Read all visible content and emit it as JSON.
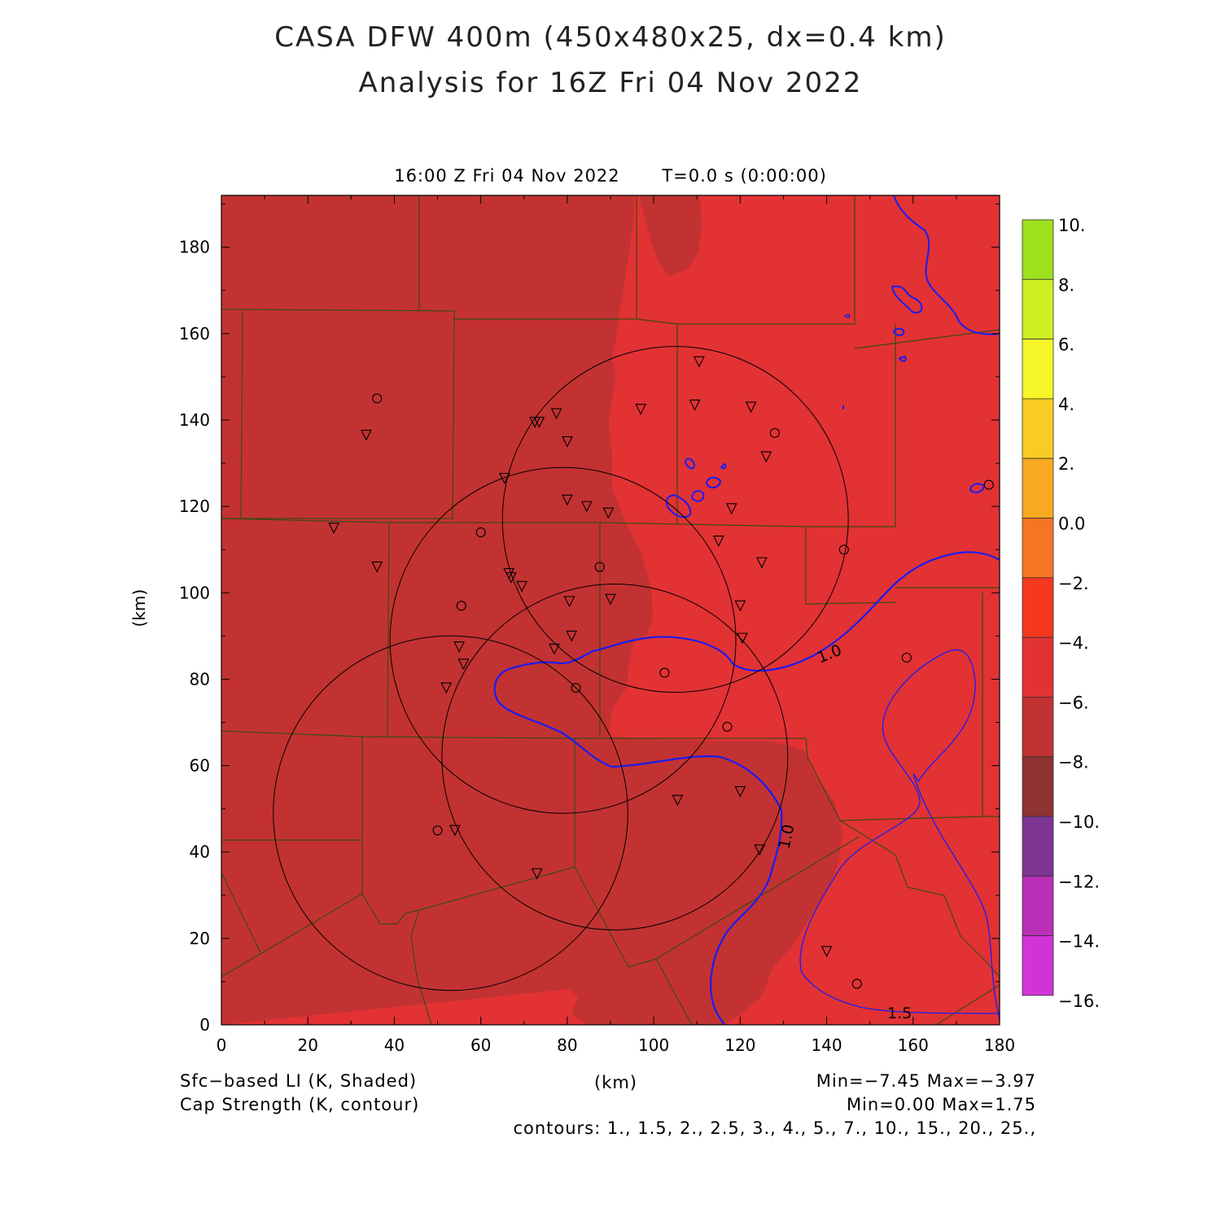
{
  "titles": {
    "line1": "CASA DFW 400m (450x480x25, dx=0.4 km)",
    "line2": "Analysis for 16Z Fri 04 Nov 2022"
  },
  "subtitle": {
    "time": "16:00 Z Fri 04 Nov 2022",
    "elapsed": "T=0.0 s (0:00:00)"
  },
  "axes": {
    "x_label": "(km)",
    "y_label": "(km)",
    "x_range": [
      0,
      180
    ],
    "y_range": [
      0,
      192
    ],
    "x_ticks": [
      "0",
      "20",
      "40",
      "60",
      "80",
      "100",
      "120",
      "140",
      "160",
      "180"
    ],
    "y_ticks": [
      "0",
      "20",
      "40",
      "60",
      "80",
      "100",
      "120",
      "140",
      "160",
      "180"
    ]
  },
  "colorbar": {
    "labels": [
      "10.",
      "8.",
      "6.",
      "4.",
      "2.",
      "0.0",
      "−2.",
      "−4.",
      "−6.",
      "−8.",
      "−10.",
      "−12.",
      "−14.",
      "−16."
    ],
    "colors": [
      "#9ee01e",
      "#cdf023",
      "#f5f527",
      "#f8cc22",
      "#f8a920",
      "#f77424",
      "#f4391f",
      "#e23234",
      "#c33232",
      "#8e3232",
      "#7e3592",
      "#b92fb6",
      "#d233d6"
    ]
  },
  "legend_left": {
    "line1": "Sfc−based LI (K, Shaded)",
    "line2": "Cap Strength (K, contour)"
  },
  "legend_right": {
    "line1": "Min=−7.45  Max=−3.97",
    "line2": "Min=0.00  Max=1.75",
    "line3": "contours: 1., 1.5, 2., 2.5, 3., 4., 5., 7., 10., 15., 20., 25.,"
  },
  "contour_labels": [
    "1.0",
    "1.0",
    "1.5"
  ],
  "map_colors": {
    "warm_field": "#e23234",
    "cool_field": "#c33232",
    "contour": "#1c1cf0",
    "county_lines": "#3c4a14"
  },
  "station_markers": {
    "triangles_km": [
      [
        33.5,
        136.5
      ],
      [
        26,
        115
      ],
      [
        36,
        106
      ],
      [
        65.5,
        126.5
      ],
      [
        72.5,
        139.5
      ],
      [
        73.5,
        139.5
      ],
      [
        77.5,
        141.5
      ],
      [
        80,
        135
      ],
      [
        80,
        121.5
      ],
      [
        84.5,
        120
      ],
      [
        89.5,
        118.5
      ],
      [
        97,
        142.5
      ],
      [
        109.5,
        143.5
      ],
      [
        110.5,
        153.5
      ],
      [
        122.5,
        143
      ],
      [
        126,
        131.5
      ],
      [
        118,
        119.5
      ],
      [
        115,
        112
      ],
      [
        125,
        107
      ],
      [
        66.5,
        104.5
      ],
      [
        67,
        103.5
      ],
      [
        69.5,
        101.5
      ],
      [
        80.5,
        98
      ],
      [
        90,
        98.5
      ],
      [
        120,
        97
      ],
      [
        81,
        90
      ],
      [
        77,
        87
      ],
      [
        55,
        87.5
      ],
      [
        56,
        83.5
      ],
      [
        52,
        78
      ],
      [
        120.5,
        89.5
      ],
      [
        105.5,
        52
      ],
      [
        120,
        54
      ],
      [
        124.5,
        40.5
      ],
      [
        54,
        45
      ],
      [
        73,
        35
      ],
      [
        140,
        17
      ]
    ],
    "circles_km": [
      [
        36,
        145
      ],
      [
        60,
        114
      ],
      [
        55.5,
        97
      ],
      [
        87.5,
        106
      ],
      [
        82,
        78
      ],
      [
        102.5,
        81.5
      ],
      [
        117,
        69
      ],
      [
        128,
        137
      ],
      [
        144,
        110
      ],
      [
        158.5,
        85
      ],
      [
        50,
        45
      ],
      [
        147,
        9.5
      ],
      [
        177.5,
        125
      ]
    ]
  },
  "radar_rings_km": [
    [
      105,
      117,
      40
    ],
    [
      79,
      89,
      40
    ],
    [
      53,
      49,
      41
    ],
    [
      91,
      62,
      40
    ]
  ]
}
